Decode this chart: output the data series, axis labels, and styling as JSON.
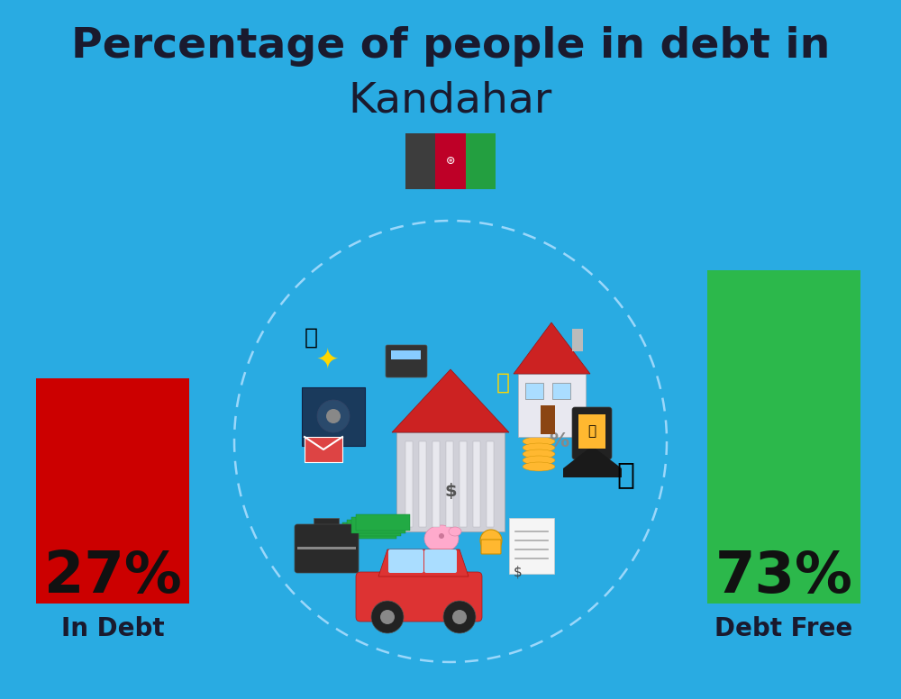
{
  "title_line1": "Percentage of people in debt in",
  "title_line2": "Kandahar",
  "title1_fontsize": 34,
  "title2_fontsize": 34,
  "title_color": "#1a1a2e",
  "background_color": "#29ABE2",
  "in_debt_pct": "27%",
  "debt_free_pct": "73%",
  "in_debt_label": "In Debt",
  "debt_free_label": "Debt Free",
  "in_debt_color": "#CC0000",
  "debt_free_color": "#2CB84B",
  "label_color": "#1a1a2e",
  "pct_fontsize": 46,
  "label_fontsize": 20,
  "flag_black": "#3d3d3d",
  "flag_red": "#BE0027",
  "flag_green": "#239F40",
  "dashed_circle_color": "#b0e0ff"
}
